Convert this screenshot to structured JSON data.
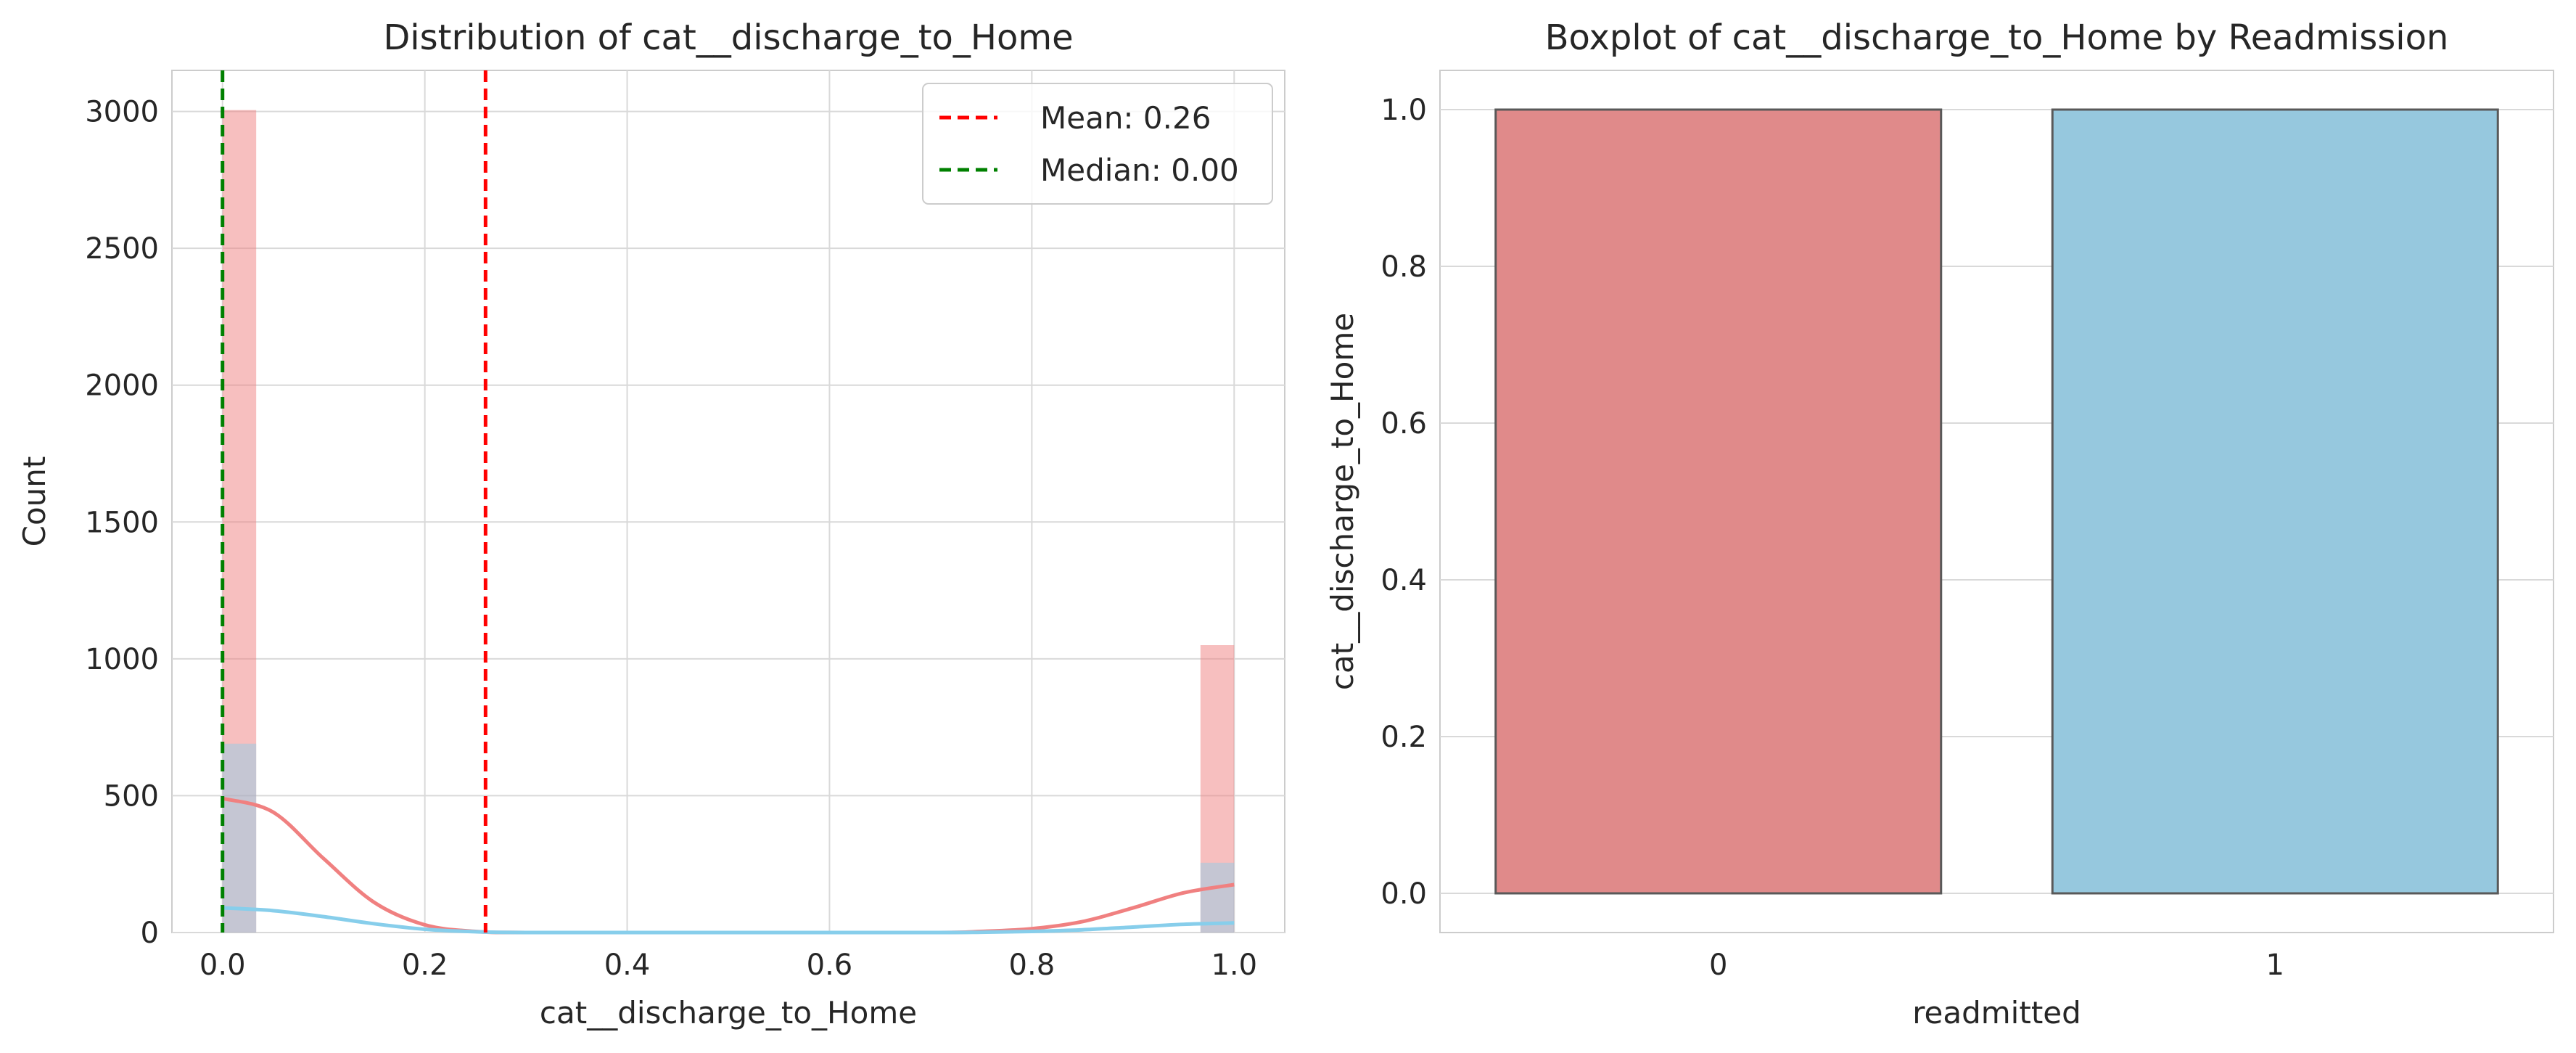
{
  "chart_data": [
    {
      "type": "histogram",
      "title": "Distribution of cat__discharge_to_Home",
      "xlabel": "cat__discharge_to_Home",
      "ylabel": "Count",
      "xlim": [
        -0.05,
        1.05
      ],
      "ylim": [
        0,
        3150
      ],
      "xticks": [
        0.0,
        0.2,
        0.4,
        0.6,
        0.8,
        1.0
      ],
      "xtick_labels": [
        "0.0",
        "0.2",
        "0.4",
        "0.6",
        "0.8",
        "1.0"
      ],
      "yticks": [
        0,
        500,
        1000,
        1500,
        2000,
        2500,
        3000
      ],
      "ytick_labels": [
        "0",
        "500",
        "1000",
        "1500",
        "2000",
        "2500",
        "3000"
      ],
      "grid": true,
      "legend_position": "top-right",
      "bin_width": 0.0333,
      "series": [
        {
          "color": "#f08080",
          "bars": [
            {
              "x": 0.0,
              "count": 3005
            },
            {
              "x": 0.9667,
              "count": 1050
            }
          ],
          "kde": [
            [
              0.0,
              490
            ],
            [
              0.05,
              440
            ],
            [
              0.1,
              270
            ],
            [
              0.15,
              110
            ],
            [
              0.2,
              28
            ],
            [
              0.25,
              4
            ],
            [
              0.3,
              0
            ],
            [
              0.5,
              0
            ],
            [
              0.7,
              0
            ],
            [
              0.75,
              4
            ],
            [
              0.8,
              14
            ],
            [
              0.85,
              40
            ],
            [
              0.9,
              90
            ],
            [
              0.95,
              145
            ],
            [
              1.0,
              175
            ]
          ]
        },
        {
          "color": "#87ceeb",
          "bars": [
            {
              "x": 0.0,
              "count": 690
            },
            {
              "x": 0.9667,
              "count": 255
            }
          ],
          "kde": [
            [
              0.0,
              90
            ],
            [
              0.05,
              80
            ],
            [
              0.1,
              58
            ],
            [
              0.15,
              32
            ],
            [
              0.2,
              12
            ],
            [
              0.25,
              3
            ],
            [
              0.3,
              0
            ],
            [
              0.5,
              0
            ],
            [
              0.7,
              0
            ],
            [
              0.75,
              1
            ],
            [
              0.8,
              4
            ],
            [
              0.85,
              10
            ],
            [
              0.9,
              20
            ],
            [
              0.95,
              30
            ],
            [
              1.0,
              35
            ]
          ]
        }
      ],
      "lines": [
        {
          "label": "Mean: 0.26",
          "x": 0.26,
          "color": "#ff0000",
          "style": "dashed"
        },
        {
          "label": "Median: 0.00",
          "x": 0.0,
          "color": "#008000",
          "style": "dashed"
        }
      ]
    },
    {
      "type": "box",
      "title": "Boxplot of cat__discharge_to_Home by Readmission",
      "xlabel": "readmitted",
      "ylabel": "cat__discharge_to_Home",
      "categories": [
        "0",
        "1"
      ],
      "ylim": [
        -0.05,
        1.05
      ],
      "yticks": [
        0.0,
        0.2,
        0.4,
        0.6,
        0.8,
        1.0
      ],
      "ytick_labels": [
        "0.0",
        "0.2",
        "0.4",
        "0.6",
        "0.8",
        "1.0"
      ],
      "grid": true,
      "boxes": [
        {
          "category": "0",
          "q1": 0.0,
          "median": 0.0,
          "q3": 1.0,
          "whisker_low": 0.0,
          "whisker_high": 1.0,
          "color": "#e08a8a"
        },
        {
          "category": "1",
          "q1": 0.0,
          "median": 0.0,
          "q3": 1.0,
          "whisker_low": 0.0,
          "whisker_high": 1.0,
          "color": "#96c8de"
        }
      ]
    }
  ]
}
